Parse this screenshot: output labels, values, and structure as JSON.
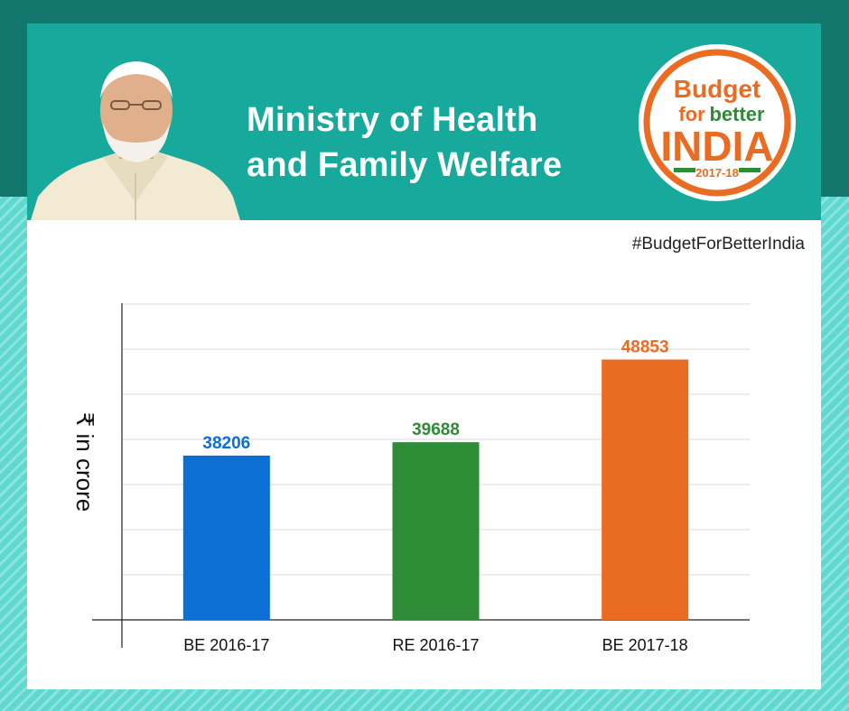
{
  "header": {
    "title_line1": "Ministry of Health",
    "title_line2": "and Family Welfare",
    "hashtag": "#BudgetForBetterIndia"
  },
  "badge": {
    "line1": "Budget",
    "line2a": "for",
    "line2b": "better",
    "line3": "INDIA",
    "year": "2017-18"
  },
  "colors": {
    "header": "#17a99b",
    "band": "#14776e",
    "accent_orange": "#ea6c23",
    "blue": "#0b6fd4",
    "green": "#2e8b36"
  },
  "chart_data": {
    "type": "bar",
    "ylabel": "₹ in crore",
    "categories": [
      "BE 2016-17",
      "RE 2016-17",
      "BE 2017-18"
    ],
    "values": [
      38206,
      39688,
      48853
    ],
    "bar_colors": [
      "#0b6fd4",
      "#2e8b36",
      "#ea6c23"
    ],
    "ylim": [
      20000,
      55000
    ],
    "grid": true
  }
}
